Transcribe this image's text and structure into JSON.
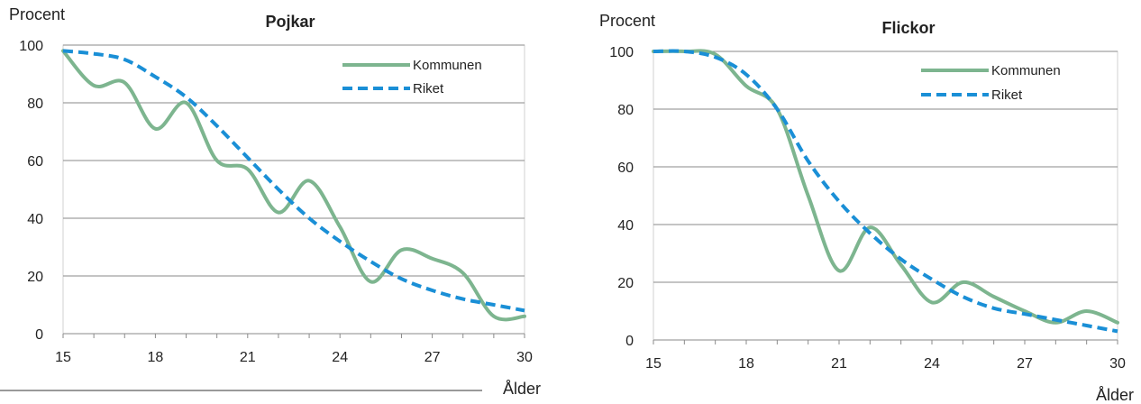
{
  "chart_data": [
    {
      "type": "line",
      "title": "Pojkar",
      "ylabel": "Procent",
      "xlabel": "Ålder",
      "xlim": [
        15,
        30
      ],
      "ylim": [
        0,
        100
      ],
      "x_ticks": [
        15,
        18,
        21,
        24,
        27,
        30
      ],
      "y_ticks": [
        0,
        20,
        40,
        60,
        80,
        100
      ],
      "grid": true,
      "legend": "top-right",
      "series": [
        {
          "name": "Kommunen",
          "color": "#7db58f",
          "style": "solid",
          "x": [
            15,
            16,
            17,
            18,
            19,
            20,
            21,
            22,
            23,
            24,
            25,
            26,
            27,
            28,
            29,
            30
          ],
          "y": [
            98,
            86,
            87,
            71,
            80,
            60,
            57,
            42,
            53,
            37,
            18,
            29,
            26,
            21,
            6,
            6
          ]
        },
        {
          "name": "Riket",
          "color": "#1a8fd6",
          "style": "dashed",
          "x": [
            15,
            16,
            17,
            18,
            19,
            20,
            21,
            22,
            23,
            24,
            25,
            26,
            27,
            28,
            29,
            30
          ],
          "y": [
            98,
            97,
            95,
            89,
            82,
            72,
            61,
            50,
            40,
            32,
            25,
            19,
            15,
            12,
            10,
            8
          ]
        }
      ]
    },
    {
      "type": "line",
      "title": "Flickor",
      "ylabel": "Procent",
      "xlabel": "Ålder",
      "xlim": [
        15,
        30
      ],
      "ylim": [
        0,
        100
      ],
      "x_ticks": [
        15,
        18,
        21,
        24,
        27,
        30
      ],
      "y_ticks": [
        0,
        20,
        40,
        60,
        80,
        100
      ],
      "grid": true,
      "legend": "top-right",
      "series": [
        {
          "name": "Kommunen",
          "color": "#7db58f",
          "style": "solid",
          "x": [
            15,
            16,
            17,
            18,
            19,
            20,
            21,
            22,
            23,
            24,
            25,
            26,
            27,
            28,
            29,
            30
          ],
          "y": [
            100,
            100,
            99,
            88,
            80,
            50,
            24,
            39,
            26,
            13,
            20,
            15,
            10,
            6,
            10,
            6
          ]
        },
        {
          "name": "Riket",
          "color": "#1a8fd6",
          "style": "dashed",
          "x": [
            15,
            16,
            17,
            18,
            19,
            20,
            21,
            22,
            23,
            24,
            25,
            26,
            27,
            28,
            29,
            30
          ],
          "y": [
            100,
            100,
            98,
            92,
            80,
            62,
            48,
            37,
            28,
            21,
            15,
            11,
            9,
            7,
            5,
            3
          ]
        }
      ]
    }
  ]
}
